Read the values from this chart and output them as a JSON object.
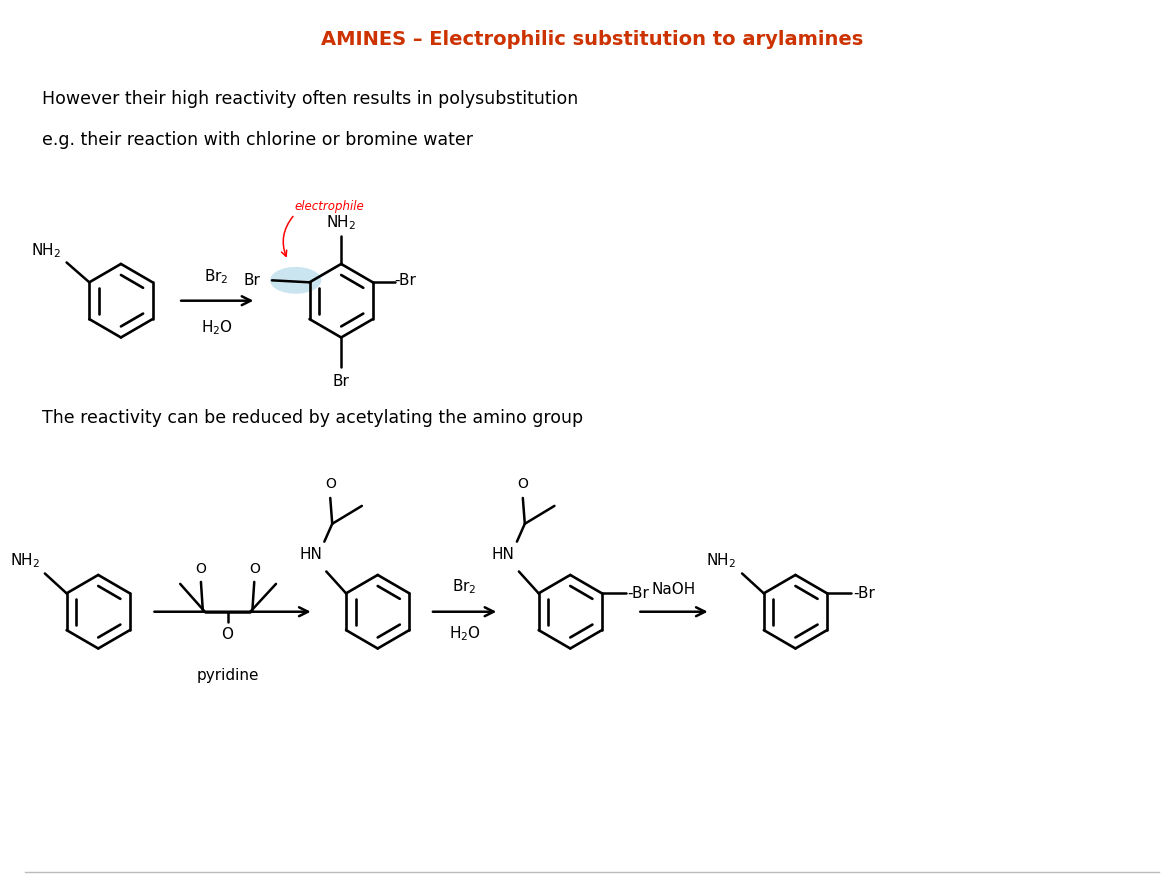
{
  "title": "AMINES – Electrophilic substitution to arylamines",
  "title_color": "#CC3300",
  "bg": "#FFFFFF",
  "text1": "However their high reactivity often results in polysubstitution",
  "text2": "e.g. their reaction with chlorine or bromine water",
  "text3": "The reactivity can be reduced by acetylating the amino group"
}
